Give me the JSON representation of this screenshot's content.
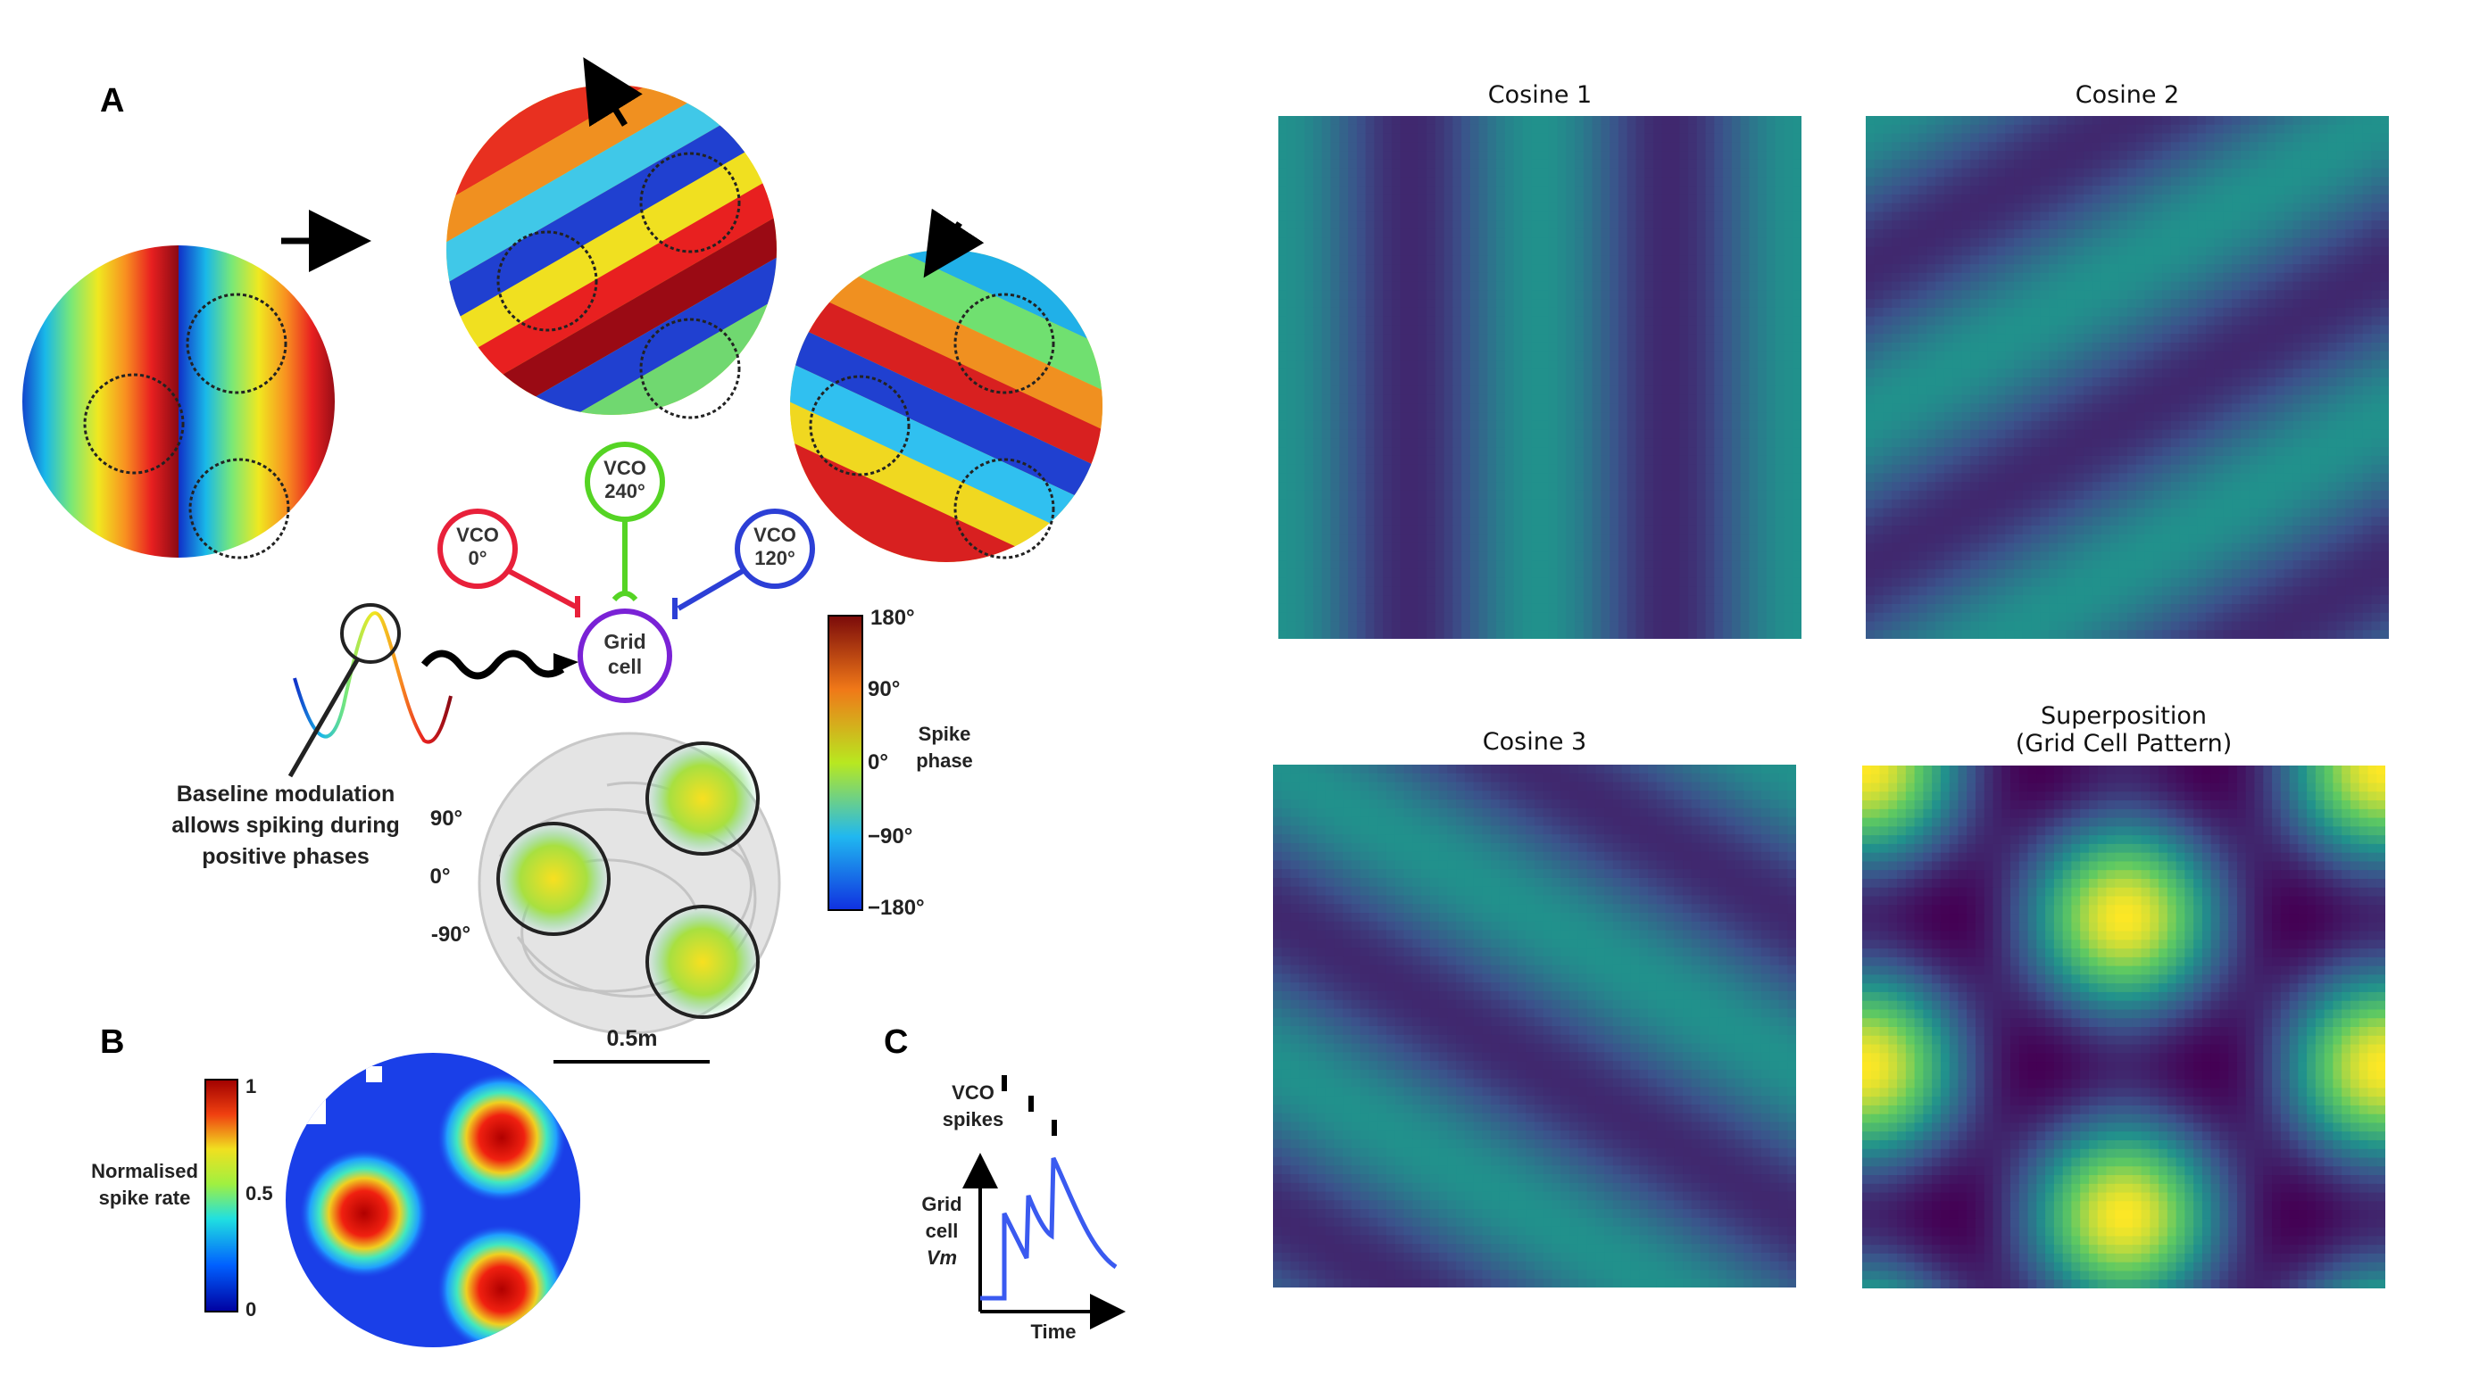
{
  "left_figure": {
    "panel_a_letter": "A",
    "panel_b_letter": "B",
    "panel_c_letter": "C",
    "vco_0": [
      "VCO",
      "0°"
    ],
    "vco_240": [
      "VCO",
      "240°"
    ],
    "vco_120": [
      "VCO",
      "120°"
    ],
    "grid_cell": [
      "Grid",
      "cell"
    ],
    "baseline_text": [
      "Baseline modulation",
      "allows spiking during",
      "positive phases"
    ],
    "phase_ticks": [
      "90°",
      "0°",
      "-90°"
    ],
    "scale_bar": "0.5m",
    "phase_colorbar": {
      "ticks": [
        "180°",
        "90°",
        "0°",
        "−90°",
        "−180°"
      ],
      "label": [
        "Spike",
        "phase"
      ]
    },
    "rate_colorbar": {
      "ticks": [
        "1",
        "0.5",
        "0"
      ],
      "label": [
        "Normalised",
        "spike rate"
      ]
    },
    "panel_c": {
      "vco_label": [
        "VCO",
        "spikes"
      ],
      "grid_label": [
        "Grid",
        "cell",
        "Vm"
      ],
      "time_label": "Time"
    },
    "colors": {
      "vco_0": "#e8203a",
      "vco_240": "#55d424",
      "vco_120": "#2c3fd6",
      "grid_cell": "#7a22d6"
    }
  },
  "panels": [
    {
      "id": "cosine-1",
      "title": [
        "Cosine 1"
      ]
    },
    {
      "id": "cosine-2",
      "title": [
        "Cosine 2"
      ]
    },
    {
      "id": "cosine-3",
      "title": [
        "Cosine 3"
      ]
    },
    {
      "id": "superposition",
      "title": [
        "Superposition",
        "(Grid Cell Pattern)"
      ]
    }
  ],
  "colormap": "viridis"
}
